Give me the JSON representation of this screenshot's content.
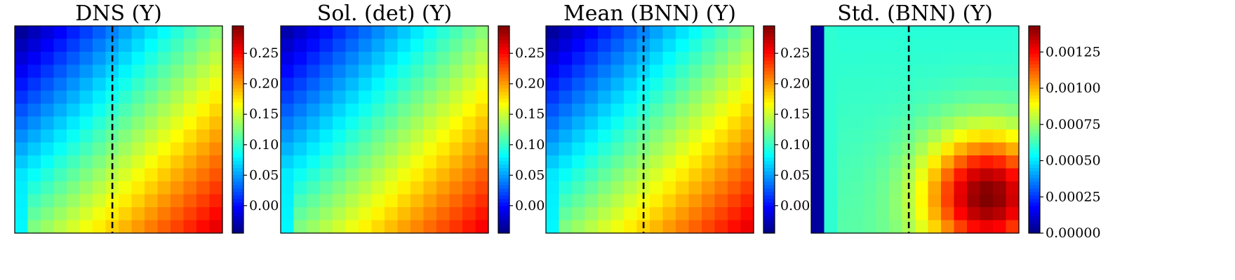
{
  "figure": {
    "colormap": "jet",
    "panels": [
      {
        "title": "DNS (Y)",
        "field": "dns",
        "show_dashed_line": true,
        "dashed_line_x": 0.47,
        "colorbar": {
          "min": -0.045,
          "max": 0.295,
          "ticks": [
            0.0,
            0.05,
            0.1,
            0.15,
            0.2,
            0.25
          ],
          "tick_labels": [
            "0.00",
            "0.05",
            "0.10",
            "0.15",
            "0.20",
            "0.25"
          ]
        }
      },
      {
        "title": "Sol. (det) (Y)",
        "field": "det",
        "show_dashed_line": false,
        "colorbar": {
          "min": -0.045,
          "max": 0.295,
          "ticks": [
            0.0,
            0.05,
            0.1,
            0.15,
            0.2,
            0.25
          ],
          "tick_labels": [
            "0.00",
            "0.05",
            "0.10",
            "0.15",
            "0.20",
            "0.25"
          ]
        }
      },
      {
        "title": "Mean (BNN) (Y)",
        "field": "mean",
        "show_dashed_line": true,
        "dashed_line_x": 0.47,
        "colorbar": {
          "min": -0.045,
          "max": 0.295,
          "ticks": [
            0.0,
            0.05,
            0.1,
            0.15,
            0.2,
            0.25
          ],
          "tick_labels": [
            "0.00",
            "0.05",
            "0.10",
            "0.15",
            "0.20",
            "0.25"
          ]
        }
      },
      {
        "title": "Std. (BNN) (Y)",
        "field": "std",
        "show_dashed_line": true,
        "dashed_line_x": 0.47,
        "colorbar": {
          "min": 0.0,
          "max": 0.00143,
          "ticks": [
            0.0,
            0.00025,
            0.0005,
            0.00075,
            0.001,
            0.00125
          ],
          "tick_labels": [
            "0.00000",
            "0.00025",
            "0.00050",
            "0.00075",
            "0.00100",
            "0.00125"
          ]
        }
      }
    ]
  },
  "chart_data": {
    "type": "heatmap",
    "grid": "16x16",
    "panels": [
      "DNS (Y)",
      "Sol. (det) (Y)",
      "Mean (BNN) (Y)",
      "Std. (BNN) (Y)"
    ],
    "value_ranges": {
      "DNS (Y)": [
        -0.045,
        0.295
      ],
      "Sol. (det) (Y)": [
        -0.045,
        0.295
      ],
      "Mean (BNN) (Y)": [
        -0.045,
        0.295
      ],
      "Std. (BNN) (Y)": [
        0.0,
        0.00143
      ]
    }
  }
}
